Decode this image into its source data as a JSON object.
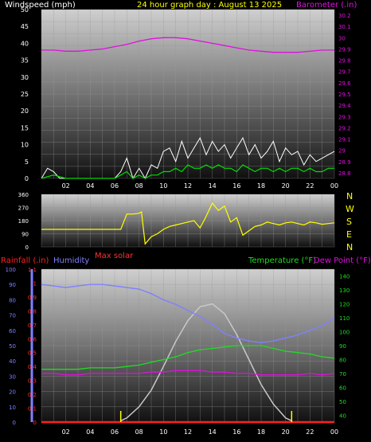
{
  "header": {
    "left": "Windspeed (mph)",
    "center": "24 hour graph day : August 13 2025",
    "right": "Barometer (.in)"
  },
  "compass": [
    "N",
    "W",
    "S",
    "E",
    "N"
  ],
  "lower_header": {
    "rainfall": "Rainfall (.in)",
    "humidity": "Humidity",
    "max_solar": "Max solar",
    "temperature": "Temperature (°F)",
    "dew_point": "Dew Point (°F)"
  },
  "colors": {
    "wind_gust": "#ffffff",
    "wind_avg": "#00dd00",
    "barometer": "#e010e0",
    "direction": "#ffff00",
    "humidity": "#8080ff",
    "temperature": "#20dd20",
    "dew_point": "#e010e0",
    "solar": "#c8c8c8",
    "rain": "#ff2020"
  },
  "chart_data": [
    {
      "type": "line",
      "name": "wind-and-barometer",
      "x_ticks": [
        "02",
        "04",
        "06",
        "08",
        "10",
        "12",
        "14",
        "16",
        "18",
        "20",
        "22",
        "00"
      ],
      "y_left_ticks": [
        "0",
        "5",
        "10",
        "15",
        "20",
        "25",
        "30",
        "35",
        "40",
        "45",
        "50"
      ],
      "y_left_range": [
        0,
        50
      ],
      "y_right_ticks": [
        "28.8",
        "28.9",
        "29",
        "29.1",
        "29.2",
        "29.3",
        "29.4",
        "29.5",
        "29.6",
        "29.7",
        "29.8",
        "29.9",
        "30",
        "30.1",
        "30.2"
      ],
      "y_right_range": [
        28.75,
        30.25
      ],
      "series": [
        {
          "label": "gust",
          "x": [
            0,
            0.5,
            1,
            1.5,
            2,
            2.5,
            3,
            4,
            5,
            6,
            6.5,
            7,
            7.5,
            8,
            8.5,
            9,
            9.5,
            10,
            10.5,
            11,
            11.5,
            12,
            12.5,
            13,
            13.5,
            14,
            14.5,
            15,
            15.5,
            16,
            16.5,
            17,
            17.5,
            18,
            18.5,
            19,
            19.5,
            20,
            20.5,
            21,
            21.5,
            22,
            22.5,
            23,
            23.5,
            24
          ],
          "y": [
            0,
            3,
            2,
            0,
            0,
            0,
            0,
            0,
            0,
            0,
            2,
            6,
            0,
            3,
            0,
            4,
            3,
            8,
            9,
            5,
            11,
            6,
            9,
            12,
            7,
            11,
            8,
            10,
            6,
            9,
            12,
            7,
            10,
            6,
            8,
            11,
            5,
            9,
            7,
            8,
            4,
            7,
            5,
            6,
            7,
            8
          ]
        },
        {
          "label": "average",
          "x": [
            0,
            1,
            2,
            4,
            6,
            6.5,
            7,
            7.5,
            8,
            8.5,
            9,
            9.5,
            10,
            10.5,
            11,
            11.5,
            12,
            12.5,
            13,
            13.5,
            14,
            14.5,
            15,
            15.5,
            16,
            16.5,
            17,
            17.5,
            18,
            18.5,
            19,
            19.5,
            20,
            20.5,
            21,
            21.5,
            22,
            22.5,
            23,
            23.5,
            24
          ],
          "y": [
            0,
            1,
            0,
            0,
            0,
            1,
            2,
            0,
            1,
            0,
            1,
            1,
            2,
            2,
            3,
            2,
            4,
            3,
            3,
            4,
            3,
            4,
            3,
            3,
            2,
            4,
            3,
            2,
            3,
            3,
            2,
            3,
            2,
            3,
            3,
            2,
            3,
            2,
            2,
            3,
            3
          ]
        },
        {
          "label": "barometer",
          "x": [
            0,
            1,
            2,
            3,
            4,
            5,
            6,
            7,
            8,
            9,
            10,
            11,
            12,
            13,
            14,
            15,
            16,
            17,
            18,
            19,
            20,
            21,
            22,
            23,
            24
          ],
          "y": [
            29.89,
            29.89,
            29.88,
            29.88,
            29.89,
            29.9,
            29.92,
            29.94,
            29.97,
            29.99,
            30.0,
            30.0,
            29.99,
            29.97,
            29.95,
            29.93,
            29.91,
            29.89,
            29.88,
            29.87,
            29.87,
            29.87,
            29.88,
            29.89,
            29.89
          ]
        }
      ]
    },
    {
      "type": "line",
      "name": "wind-direction",
      "x_ticks": [],
      "y_ticks": [
        "0",
        "90",
        "180",
        "270",
        "360"
      ],
      "y_range": [
        0,
        360
      ],
      "series": [
        {
          "label": "direction",
          "x": [
            0,
            1,
            2,
            3,
            4,
            5,
            6,
            6.5,
            7,
            7.5,
            8,
            8.2,
            8.5,
            9,
            9.5,
            10,
            10.5,
            11,
            11.5,
            12,
            12.5,
            13,
            13.5,
            14,
            14.5,
            15,
            15.5,
            16,
            16.5,
            17,
            17.5,
            18,
            18.5,
            19,
            19.5,
            20,
            20.5,
            21,
            21.5,
            22,
            22.5,
            23,
            23.5,
            24
          ],
          "y": [
            120,
            120,
            120,
            120,
            120,
            120,
            120,
            120,
            225,
            225,
            230,
            240,
            20,
            70,
            90,
            120,
            140,
            150,
            160,
            170,
            180,
            130,
            210,
            300,
            250,
            280,
            170,
            200,
            80,
            110,
            140,
            150,
            170,
            160,
            150,
            165,
            170,
            160,
            150,
            170,
            165,
            155,
            160,
            165
          ]
        }
      ]
    },
    {
      "type": "line",
      "name": "rain-humidity-temperature",
      "x_ticks": [
        "02",
        "04",
        "06",
        "08",
        "10",
        "12",
        "14",
        "16",
        "18",
        "20",
        "22",
        "00"
      ],
      "humidity_ticks": [
        "0",
        "10",
        "20",
        "30",
        "40",
        "50",
        "60",
        "70",
        "80",
        "90",
        "100"
      ],
      "humidity_range": [
        0,
        100
      ],
      "rain_ticks": [
        "0",
        "0.1",
        "0.2",
        "0.3",
        "0.4",
        "0.5",
        "0.6",
        "0.7",
        "0.8",
        "0.9",
        "1",
        "1.1"
      ],
      "rain_range": [
        0,
        1.1
      ],
      "temp_ticks": [
        "40",
        "50",
        "60",
        "70",
        "80",
        "90",
        "100",
        "110",
        "120",
        "130",
        "140"
      ],
      "temp_range": [
        35,
        145
      ],
      "series": [
        {
          "label": "humidity",
          "x": [
            0,
            1,
            2,
            3,
            4,
            5,
            6,
            7,
            8,
            9,
            10,
            11,
            12,
            13,
            14,
            15,
            16,
            17,
            18,
            19,
            20,
            21,
            22,
            23,
            24
          ],
          "y": [
            90,
            89,
            88,
            89,
            90,
            90,
            89,
            88,
            87,
            84,
            80,
            77,
            73,
            69,
            64,
            58,
            55,
            53,
            52,
            53,
            55,
            57,
            60,
            63,
            68
          ]
        },
        {
          "label": "temperature",
          "x": [
            0,
            1,
            2,
            3,
            4,
            5,
            6,
            7,
            8,
            9,
            10,
            11,
            12,
            13,
            14,
            15,
            16,
            17,
            18,
            19,
            20,
            21,
            22,
            23,
            24
          ],
          "y": [
            73,
            73,
            73,
            73,
            74,
            74,
            74,
            75,
            76,
            78,
            80,
            82,
            85,
            87,
            88,
            89,
            90,
            90,
            90,
            88,
            86,
            85,
            84,
            82,
            81
          ]
        },
        {
          "label": "dew_point",
          "x": [
            0,
            1,
            2,
            3,
            4,
            5,
            6,
            7,
            8,
            9,
            10,
            11,
            12,
            13,
            14,
            15,
            16,
            17,
            18,
            19,
            20,
            21,
            22,
            23,
            24
          ],
          "y": [
            70,
            70,
            69,
            69,
            70,
            70,
            70,
            70,
            70,
            71,
            71,
            72,
            72,
            72,
            71,
            71,
            70,
            70,
            69,
            69,
            69,
            69,
            70,
            69,
            70
          ]
        },
        {
          "label": "max_solar",
          "x": [
            6.5,
            7,
            8,
            9,
            10,
            11,
            12,
            13,
            14,
            15,
            16,
            17,
            18,
            19,
            20,
            20.5
          ],
          "y": [
            36,
            38,
            46,
            58,
            75,
            93,
            108,
            118,
            120,
            113,
            98,
            80,
            62,
            48,
            38,
            36
          ]
        },
        {
          "label": "rainfall",
          "x": [
            0,
            24
          ],
          "y": [
            0,
            0
          ]
        }
      ]
    }
  ]
}
